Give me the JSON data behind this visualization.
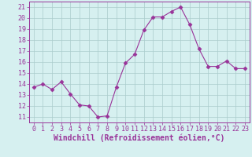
{
  "x": [
    0,
    1,
    2,
    3,
    4,
    5,
    6,
    7,
    8,
    9,
    10,
    11,
    12,
    13,
    14,
    15,
    16,
    17,
    18,
    19,
    20,
    21,
    22,
    23
  ],
  "y": [
    13.7,
    14.0,
    13.5,
    14.2,
    13.1,
    12.1,
    12.0,
    11.0,
    11.1,
    13.7,
    15.9,
    16.7,
    18.9,
    20.1,
    20.1,
    20.6,
    21.0,
    19.4,
    17.2,
    15.6,
    15.6,
    16.1,
    15.4,
    15.4
  ],
  "line_color": "#993399",
  "marker": "D",
  "marker_size": 2.5,
  "bg_color": "#d6f0f0",
  "grid_color": "#aacccc",
  "xlabel": "Windchill (Refroidissement éolien,°C)",
  "ylabel": "",
  "xlim": [
    -0.5,
    23.5
  ],
  "ylim": [
    10.5,
    21.5
  ],
  "yticks": [
    11,
    12,
    13,
    14,
    15,
    16,
    17,
    18,
    19,
    20,
    21
  ],
  "xticks": [
    0,
    1,
    2,
    3,
    4,
    5,
    6,
    7,
    8,
    9,
    10,
    11,
    12,
    13,
    14,
    15,
    16,
    17,
    18,
    19,
    20,
    21,
    22,
    23
  ],
  "tick_fontsize": 6.0,
  "xlabel_fontsize": 7.0,
  "linewidth": 0.8
}
